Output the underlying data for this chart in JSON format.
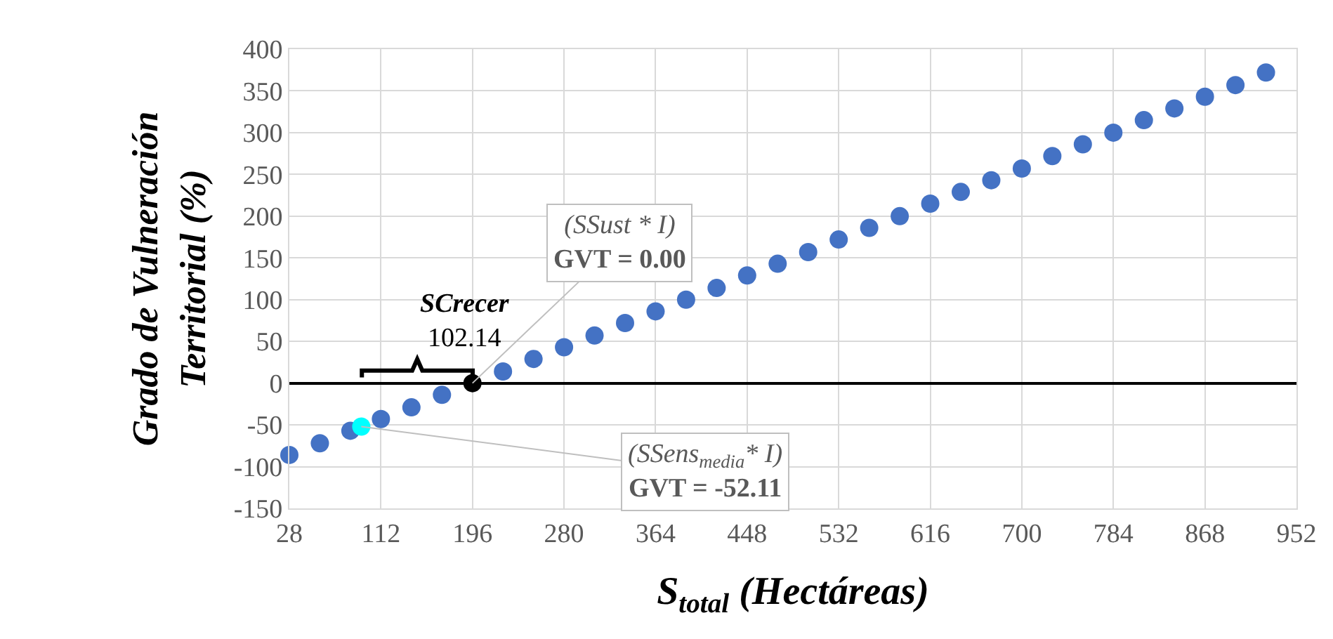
{
  "chart_data": {
    "type": "scatter",
    "xlabel": "S$_{total}$ (Hectáreas)",
    "ylabel": "Grado de Vulneración\nTerritorial (%)",
    "series": [
      {
        "color": "#4472c4",
        "x": [
          28,
          56,
          84,
          112,
          140,
          168,
          224,
          252,
          280,
          308,
          336,
          364,
          392,
          420,
          448,
          476,
          504,
          532,
          560,
          588,
          616,
          644,
          672,
          700,
          728,
          756,
          784,
          812,
          840,
          868,
          896,
          924
        ],
        "values": [
          -86,
          -72,
          -57,
          -43,
          -29,
          -14,
          14,
          29,
          43,
          57,
          72,
          86,
          100,
          114,
          129,
          143,
          157,
          172,
          186,
          200,
          215,
          229,
          243,
          257,
          272,
          286,
          300,
          315,
          329,
          343,
          357,
          372
        ]
      },
      {
        "color": "#000000",
        "x": [
          196
        ],
        "values": [
          0
        ]
      },
      {
        "color": "#00ffff",
        "x": [
          94
        ],
        "values": [
          -52
        ]
      }
    ],
    "annotations": [
      {
        "text": "(SSust * I)\nGVT = 0.00",
        "x": 196,
        "y": 0
      },
      {
        "text": "(SSens$_{media}$* I)\nGVT = -52.11",
        "x": 94,
        "y": -52
      },
      "SCrecer\n102.14"
    ],
    "xlim": [
      28,
      952
    ],
    "xticks": [
      28,
      112,
      196,
      280,
      364,
      448,
      532,
      616,
      700,
      784,
      868,
      952
    ],
    "ylim": [
      -150,
      400
    ],
    "yticks": [
      -150,
      -100,
      -50,
      0,
      50,
      100,
      150,
      200,
      250,
      300,
      350,
      400
    ],
    "grid": true,
    "marker": "circle"
  }
}
